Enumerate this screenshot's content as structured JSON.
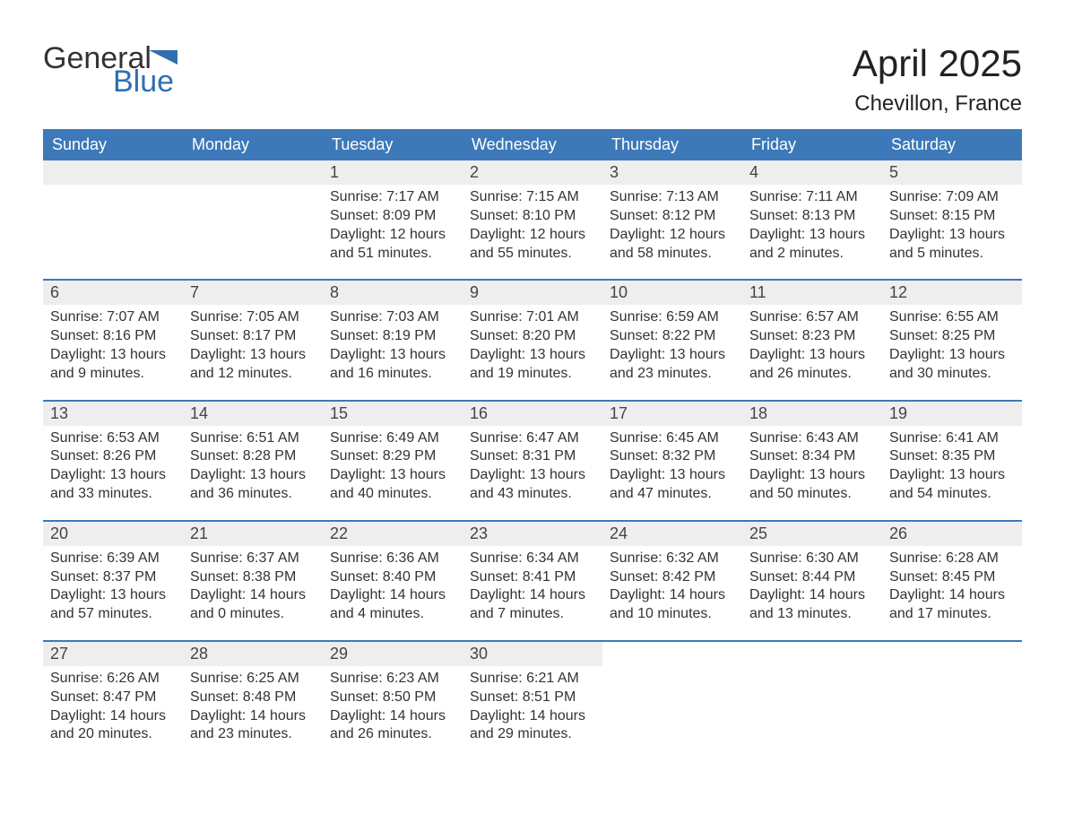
{
  "logo": {
    "text_general": "General",
    "text_blue": "Blue",
    "color_general": "#333333",
    "color_blue": "#2f6fb0",
    "flag_color": "#2f6fb0"
  },
  "header": {
    "month_title": "April 2025",
    "location": "Chevillon, France"
  },
  "styling": {
    "header_bg": "#3d79b8",
    "header_text": "#ffffff",
    "daynum_bg": "#eeeeee",
    "row_border": "#3d79b8",
    "body_text": "#333333",
    "page_bg": "#ffffff",
    "title_fontsize_pt": 32,
    "location_fontsize_pt": 18,
    "weekday_fontsize_pt": 14,
    "day_number_fontsize_pt": 14,
    "detail_fontsize_pt": 12
  },
  "weekdays": [
    "Sunday",
    "Monday",
    "Tuesday",
    "Wednesday",
    "Thursday",
    "Friday",
    "Saturday"
  ],
  "weeks": [
    [
      {
        "day": "",
        "sunrise": "",
        "sunset": "",
        "daylight": ""
      },
      {
        "day": "",
        "sunrise": "",
        "sunset": "",
        "daylight": ""
      },
      {
        "day": "1",
        "sunrise": "Sunrise: 7:17 AM",
        "sunset": "Sunset: 8:09 PM",
        "daylight": "Daylight: 12 hours and 51 minutes."
      },
      {
        "day": "2",
        "sunrise": "Sunrise: 7:15 AM",
        "sunset": "Sunset: 8:10 PM",
        "daylight": "Daylight: 12 hours and 55 minutes."
      },
      {
        "day": "3",
        "sunrise": "Sunrise: 7:13 AM",
        "sunset": "Sunset: 8:12 PM",
        "daylight": "Daylight: 12 hours and 58 minutes."
      },
      {
        "day": "4",
        "sunrise": "Sunrise: 7:11 AM",
        "sunset": "Sunset: 8:13 PM",
        "daylight": "Daylight: 13 hours and 2 minutes."
      },
      {
        "day": "5",
        "sunrise": "Sunrise: 7:09 AM",
        "sunset": "Sunset: 8:15 PM",
        "daylight": "Daylight: 13 hours and 5 minutes."
      }
    ],
    [
      {
        "day": "6",
        "sunrise": "Sunrise: 7:07 AM",
        "sunset": "Sunset: 8:16 PM",
        "daylight": "Daylight: 13 hours and 9 minutes."
      },
      {
        "day": "7",
        "sunrise": "Sunrise: 7:05 AM",
        "sunset": "Sunset: 8:17 PM",
        "daylight": "Daylight: 13 hours and 12 minutes."
      },
      {
        "day": "8",
        "sunrise": "Sunrise: 7:03 AM",
        "sunset": "Sunset: 8:19 PM",
        "daylight": "Daylight: 13 hours and 16 minutes."
      },
      {
        "day": "9",
        "sunrise": "Sunrise: 7:01 AM",
        "sunset": "Sunset: 8:20 PM",
        "daylight": "Daylight: 13 hours and 19 minutes."
      },
      {
        "day": "10",
        "sunrise": "Sunrise: 6:59 AM",
        "sunset": "Sunset: 8:22 PM",
        "daylight": "Daylight: 13 hours and 23 minutes."
      },
      {
        "day": "11",
        "sunrise": "Sunrise: 6:57 AM",
        "sunset": "Sunset: 8:23 PM",
        "daylight": "Daylight: 13 hours and 26 minutes."
      },
      {
        "day": "12",
        "sunrise": "Sunrise: 6:55 AM",
        "sunset": "Sunset: 8:25 PM",
        "daylight": "Daylight: 13 hours and 30 minutes."
      }
    ],
    [
      {
        "day": "13",
        "sunrise": "Sunrise: 6:53 AM",
        "sunset": "Sunset: 8:26 PM",
        "daylight": "Daylight: 13 hours and 33 minutes."
      },
      {
        "day": "14",
        "sunrise": "Sunrise: 6:51 AM",
        "sunset": "Sunset: 8:28 PM",
        "daylight": "Daylight: 13 hours and 36 minutes."
      },
      {
        "day": "15",
        "sunrise": "Sunrise: 6:49 AM",
        "sunset": "Sunset: 8:29 PM",
        "daylight": "Daylight: 13 hours and 40 minutes."
      },
      {
        "day": "16",
        "sunrise": "Sunrise: 6:47 AM",
        "sunset": "Sunset: 8:31 PM",
        "daylight": "Daylight: 13 hours and 43 minutes."
      },
      {
        "day": "17",
        "sunrise": "Sunrise: 6:45 AM",
        "sunset": "Sunset: 8:32 PM",
        "daylight": "Daylight: 13 hours and 47 minutes."
      },
      {
        "day": "18",
        "sunrise": "Sunrise: 6:43 AM",
        "sunset": "Sunset: 8:34 PM",
        "daylight": "Daylight: 13 hours and 50 minutes."
      },
      {
        "day": "19",
        "sunrise": "Sunrise: 6:41 AM",
        "sunset": "Sunset: 8:35 PM",
        "daylight": "Daylight: 13 hours and 54 minutes."
      }
    ],
    [
      {
        "day": "20",
        "sunrise": "Sunrise: 6:39 AM",
        "sunset": "Sunset: 8:37 PM",
        "daylight": "Daylight: 13 hours and 57 minutes."
      },
      {
        "day": "21",
        "sunrise": "Sunrise: 6:37 AM",
        "sunset": "Sunset: 8:38 PM",
        "daylight": "Daylight: 14 hours and 0 minutes."
      },
      {
        "day": "22",
        "sunrise": "Sunrise: 6:36 AM",
        "sunset": "Sunset: 8:40 PM",
        "daylight": "Daylight: 14 hours and 4 minutes."
      },
      {
        "day": "23",
        "sunrise": "Sunrise: 6:34 AM",
        "sunset": "Sunset: 8:41 PM",
        "daylight": "Daylight: 14 hours and 7 minutes."
      },
      {
        "day": "24",
        "sunrise": "Sunrise: 6:32 AM",
        "sunset": "Sunset: 8:42 PM",
        "daylight": "Daylight: 14 hours and 10 minutes."
      },
      {
        "day": "25",
        "sunrise": "Sunrise: 6:30 AM",
        "sunset": "Sunset: 8:44 PM",
        "daylight": "Daylight: 14 hours and 13 minutes."
      },
      {
        "day": "26",
        "sunrise": "Sunrise: 6:28 AM",
        "sunset": "Sunset: 8:45 PM",
        "daylight": "Daylight: 14 hours and 17 minutes."
      }
    ],
    [
      {
        "day": "27",
        "sunrise": "Sunrise: 6:26 AM",
        "sunset": "Sunset: 8:47 PM",
        "daylight": "Daylight: 14 hours and 20 minutes."
      },
      {
        "day": "28",
        "sunrise": "Sunrise: 6:25 AM",
        "sunset": "Sunset: 8:48 PM",
        "daylight": "Daylight: 14 hours and 23 minutes."
      },
      {
        "day": "29",
        "sunrise": "Sunrise: 6:23 AM",
        "sunset": "Sunset: 8:50 PM",
        "daylight": "Daylight: 14 hours and 26 minutes."
      },
      {
        "day": "30",
        "sunrise": "Sunrise: 6:21 AM",
        "sunset": "Sunset: 8:51 PM",
        "daylight": "Daylight: 14 hours and 29 minutes."
      },
      {
        "day": "",
        "sunrise": "",
        "sunset": "",
        "daylight": ""
      },
      {
        "day": "",
        "sunrise": "",
        "sunset": "",
        "daylight": ""
      },
      {
        "day": "",
        "sunrise": "",
        "sunset": "",
        "daylight": ""
      }
    ]
  ]
}
